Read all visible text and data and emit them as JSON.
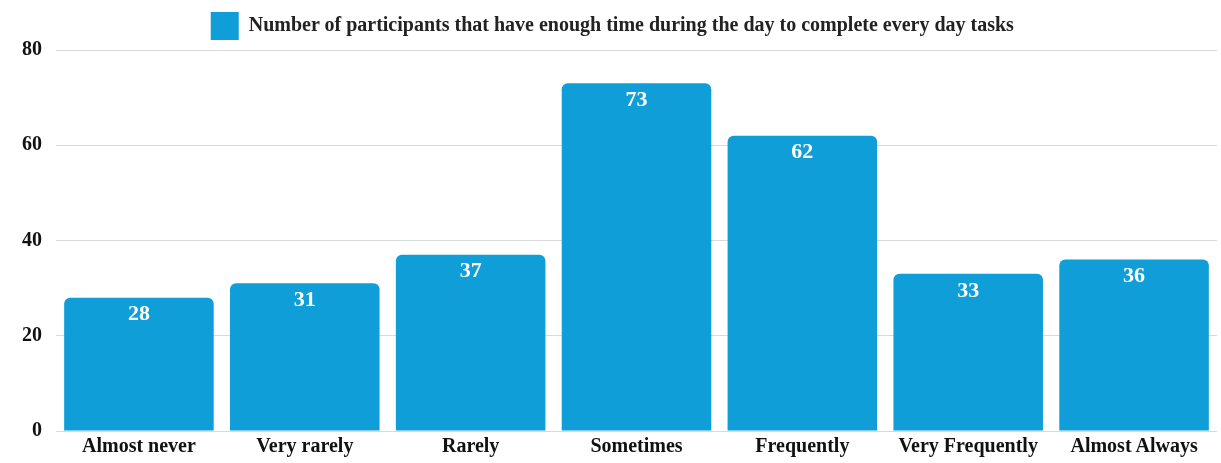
{
  "chart_data": {
    "type": "bar",
    "categories": [
      "Almost never",
      "Very rarely",
      "Rarely",
      "Sometimes",
      "Frequently",
      "Very Frequently",
      "Almost Always"
    ],
    "series": [
      {
        "name": "Number of participants that have enough time during the day to complete every day tasks",
        "color": "#0f9ed8",
        "values": [
          28,
          31,
          37,
          73,
          62,
          33,
          36
        ]
      }
    ],
    "ylim": [
      0,
      80
    ],
    "yticks": [
      0,
      20,
      40,
      60,
      80
    ],
    "grid": "y",
    "legend": "top",
    "data_labels": true
  }
}
